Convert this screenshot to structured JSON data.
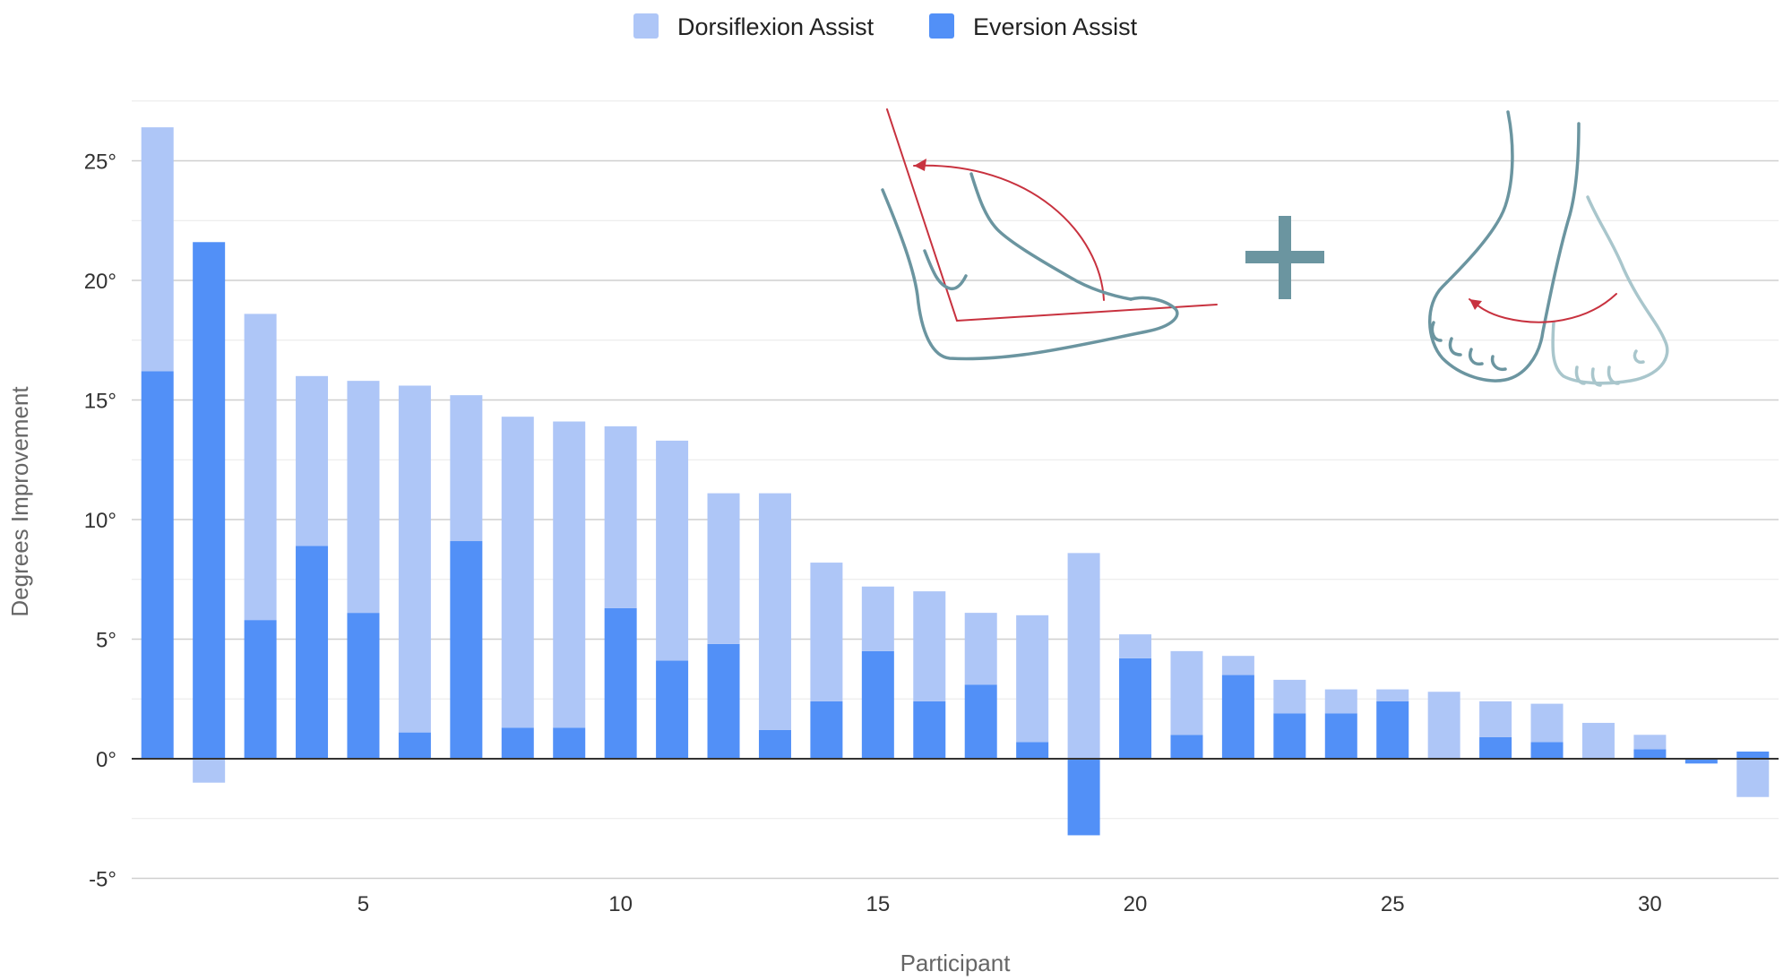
{
  "chart_data": {
    "type": "bar",
    "stacked": true,
    "xlabel": "Participant",
    "ylabel": "Degrees Improvement",
    "ylim": [
      -5,
      27
    ],
    "yticks": [
      -5,
      0,
      5,
      10,
      15,
      20,
      25
    ],
    "ytick_labels": [
      "-5°",
      "0°",
      "5°",
      "10°",
      "15°",
      "20°",
      "25°"
    ],
    "xticks": [
      5,
      10,
      15,
      20,
      25,
      30
    ],
    "xtick_labels": [
      "5",
      "10",
      "15",
      "20",
      "25",
      "30"
    ],
    "grid": true,
    "legend_position": "top-center",
    "categories": [
      1,
      2,
      3,
      4,
      5,
      6,
      7,
      8,
      9,
      10,
      11,
      12,
      13,
      14,
      15,
      16,
      17,
      18,
      19,
      20,
      21,
      22,
      23,
      24,
      25,
      26,
      27,
      28,
      29,
      30,
      31,
      32
    ],
    "series": [
      {
        "name": "Dorsiflexion Assist",
        "color": "#aec6f7",
        "values": [
          10.2,
          -1.0,
          12.8,
          7.1,
          9.7,
          14.5,
          6.1,
          13.0,
          12.8,
          7.6,
          9.2,
          6.3,
          9.9,
          5.8,
          2.7,
          4.6,
          3.0,
          5.3,
          8.6,
          1.0,
          3.5,
          0.8,
          1.4,
          1.0,
          0.5,
          2.8,
          1.5,
          1.6,
          1.5,
          0.6,
          0.0,
          -1.6
        ]
      },
      {
        "name": "Eversion Assist",
        "color": "#5290f7",
        "values": [
          16.2,
          21.6,
          5.8,
          8.9,
          6.1,
          1.1,
          9.1,
          1.3,
          1.3,
          6.3,
          4.1,
          4.8,
          1.2,
          2.4,
          4.5,
          2.4,
          3.1,
          0.7,
          -3.2,
          4.2,
          1.0,
          3.5,
          1.9,
          1.9,
          2.4,
          0.0,
          0.9,
          0.7,
          0.0,
          0.4,
          -0.2,
          0.3
        ]
      }
    ]
  },
  "illustration": {
    "plus_color": "#6b95a0",
    "foot_color": "#6b95a0",
    "arrow_color": "#c8323f"
  }
}
